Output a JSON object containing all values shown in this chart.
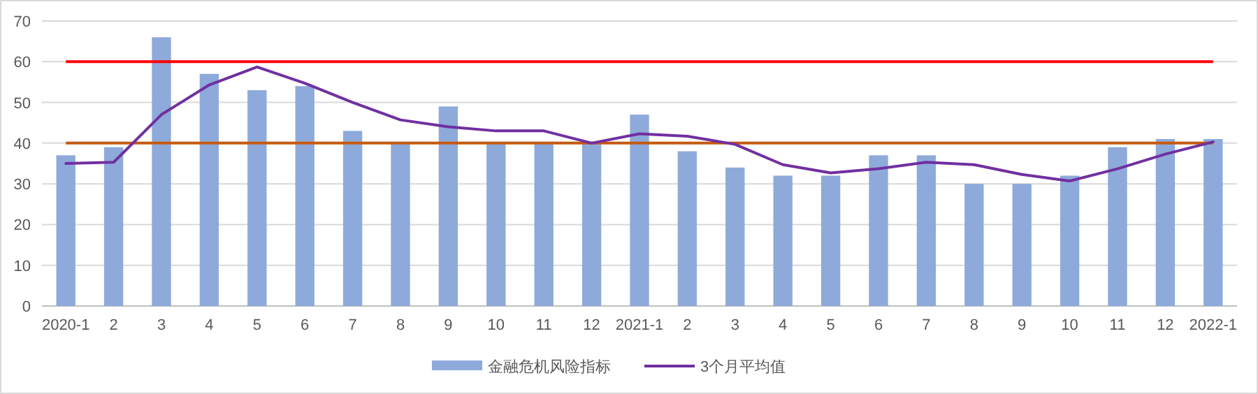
{
  "chart_data": {
    "type": "bar",
    "categories": [
      "2020-1",
      "2",
      "3",
      "4",
      "5",
      "6",
      "7",
      "8",
      "9",
      "10",
      "11",
      "12",
      "2021-1",
      "2",
      "3",
      "4",
      "5",
      "6",
      "7",
      "8",
      "9",
      "10",
      "11",
      "12",
      "2022-1"
    ],
    "series": [
      {
        "name": "金融危机风险指标",
        "color": "#8eaadb",
        "values": [
          37,
          39,
          66,
          57,
          53,
          54,
          43,
          40,
          49,
          40,
          40,
          40,
          47,
          38,
          34,
          32,
          32,
          37,
          37,
          30,
          30,
          32,
          39,
          41,
          41
        ]
      },
      {
        "name": "3个月平均值",
        "type": "line",
        "color": "#7030a0",
        "values": [
          35,
          35.3,
          47,
          54.3,
          58.7,
          54.7,
          50,
          45.7,
          44,
          43,
          43,
          40,
          42.3,
          41.7,
          39.7,
          34.7,
          32.7,
          33.7,
          35.3,
          34.7,
          32.3,
          30.7,
          33.7,
          37.3,
          40.3
        ]
      }
    ],
    "ylim": [
      0,
      70
    ],
    "yticks": [
      0,
      10,
      20,
      30,
      40,
      50,
      60,
      70
    ],
    "ref_lines": [
      {
        "axis": "y",
        "value": 60,
        "color": "#ff0000"
      },
      {
        "axis": "y",
        "value": 40,
        "color": "#c55a11"
      }
    ],
    "grid": "y",
    "legend": "bottom",
    "marker": "none",
    "line_style": "solid"
  }
}
